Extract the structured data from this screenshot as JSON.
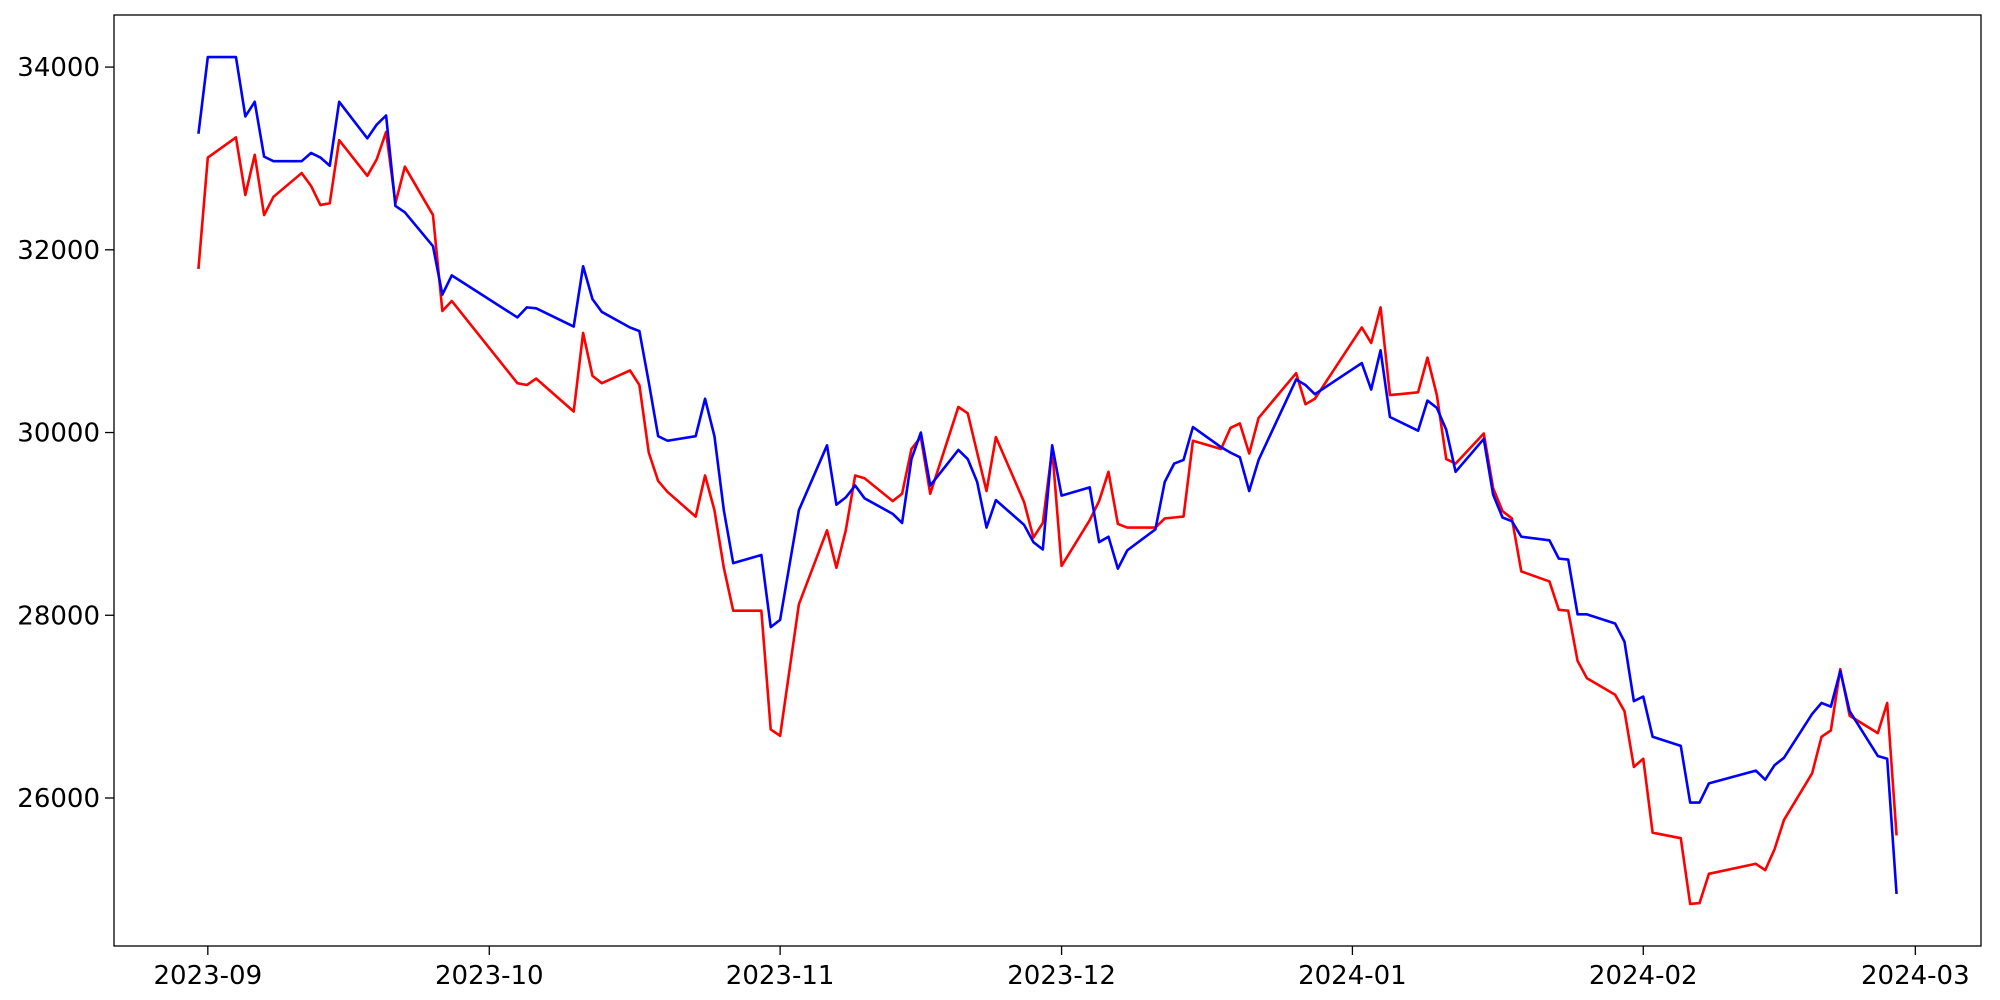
{
  "chart_data": {
    "type": "line",
    "x": [
      "2023-08-31",
      "2023-09-01",
      "2023-09-04",
      "2023-09-05",
      "2023-09-06",
      "2023-09-07",
      "2023-09-08",
      "2023-09-11",
      "2023-09-12",
      "2023-09-13",
      "2023-09-14",
      "2023-09-15",
      "2023-09-18",
      "2023-09-19",
      "2023-09-20",
      "2023-09-21",
      "2023-09-22",
      "2023-09-25",
      "2023-09-26",
      "2023-09-27",
      "2023-10-04",
      "2023-10-05",
      "2023-10-06",
      "2023-10-10",
      "2023-10-11",
      "2023-10-12",
      "2023-10-13",
      "2023-10-16",
      "2023-10-17",
      "2023-10-18",
      "2023-10-19",
      "2023-10-20",
      "2023-10-23",
      "2023-10-24",
      "2023-10-25",
      "2023-10-26",
      "2023-10-27",
      "2023-10-30",
      "2023-10-31",
      "2023-11-01",
      "2023-11-03",
      "2023-11-06",
      "2023-11-07",
      "2023-11-08",
      "2023-11-09",
      "2023-11-10",
      "2023-11-13",
      "2023-11-14",
      "2023-11-15",
      "2023-11-16",
      "2023-11-17",
      "2023-11-20",
      "2023-11-21",
      "2023-11-22",
      "2023-11-23",
      "2023-11-24",
      "2023-11-27",
      "2023-11-28",
      "2023-11-29",
      "2023-11-30",
      "2023-12-01",
      "2023-12-04",
      "2023-12-05",
      "2023-12-06",
      "2023-12-07",
      "2023-12-08",
      "2023-12-11",
      "2023-12-12",
      "2023-12-13",
      "2023-12-14",
      "2023-12-15",
      "2023-12-18",
      "2023-12-19",
      "2023-12-20",
      "2023-12-21",
      "2023-12-22",
      "2023-12-26",
      "2023-12-27",
      "2023-12-28",
      "2024-01-02",
      "2024-01-03",
      "2024-01-04",
      "2024-01-05",
      "2024-01-08",
      "2024-01-09",
      "2024-01-10",
      "2024-01-11",
      "2024-01-12",
      "2024-01-15",
      "2024-01-16",
      "2024-01-17",
      "2024-01-18",
      "2024-01-19",
      "2024-01-22",
      "2024-01-23",
      "2024-01-24",
      "2024-01-25",
      "2024-01-26",
      "2024-01-29",
      "2024-01-30",
      "2024-01-31",
      "2024-02-01",
      "2024-02-02",
      "2024-02-05",
      "2024-02-06",
      "2024-02-07",
      "2024-02-08",
      "2024-02-13",
      "2024-02-14",
      "2024-02-15",
      "2024-02-16",
      "2024-02-19",
      "2024-02-20",
      "2024-02-21",
      "2024-02-22",
      "2024-02-23",
      "2024-02-26",
      "2024-02-27",
      "2024-02-28"
    ],
    "series": [
      {
        "color": "#0000ff",
        "values": [
          33270,
          34110,
          34110,
          33460,
          33620,
          33020,
          32970,
          32970,
          33060,
          33010,
          32920,
          33620,
          33220,
          33370,
          33470,
          32480,
          32410,
          32040,
          31510,
          31720,
          31260,
          31370,
          31360,
          31160,
          31820,
          31460,
          31320,
          31150,
          31110,
          30550,
          29960,
          29910,
          29960,
          30370,
          29960,
          29150,
          28570,
          28660,
          27870,
          27950,
          29150,
          29860,
          29210,
          29290,
          29420,
          29280,
          29110,
          29010,
          29710,
          30000,
          29420,
          29810,
          29710,
          29460,
          28960,
          29260,
          28990,
          28800,
          28720,
          29860,
          29310,
          29400,
          28800,
          28860,
          28510,
          28710,
          28940,
          29460,
          29660,
          29700,
          30060,
          29840,
          29780,
          29730,
          29360,
          29700,
          30580,
          30520,
          30420,
          30760,
          30470,
          30900,
          30170,
          30020,
          30350,
          30270,
          30030,
          29570,
          29930,
          29320,
          29070,
          29030,
          28860,
          28820,
          28620,
          28610,
          28010,
          28010,
          27910,
          27710,
          27060,
          27110,
          26670,
          26570,
          25950,
          25950,
          26160,
          26300,
          26200,
          26360,
          26440,
          26920,
          27040,
          27000,
          27390,
          26950,
          26460,
          26430,
          24950
        ]
      },
      {
        "color": "#ff0000",
        "values": [
          31790,
          33010,
          33230,
          32600,
          33040,
          32380,
          32580,
          32840,
          32700,
          32490,
          32510,
          33200,
          32810,
          32990,
          33290,
          32510,
          32910,
          32380,
          31330,
          31440,
          30540,
          30520,
          30590,
          30230,
          31090,
          30620,
          30540,
          30680,
          30520,
          29780,
          29470,
          29350,
          29080,
          29530,
          29150,
          28520,
          28050,
          28050,
          26750,
          26680,
          28120,
          28930,
          28520,
          28930,
          29530,
          29500,
          29250,
          29330,
          29820,
          29950,
          29330,
          30280,
          30210,
          29780,
          29360,
          29950,
          29240,
          28850,
          29010,
          29820,
          28540,
          29040,
          29250,
          29570,
          29000,
          28960,
          28960,
          29060,
          29070,
          29080,
          29910,
          29820,
          30050,
          30100,
          29770,
          30160,
          30650,
          30310,
          30370,
          31150,
          30980,
          31370,
          30410,
          30440,
          30820,
          30410,
          29710,
          29660,
          29990,
          29390,
          29140,
          29060,
          28480,
          28370,
          28060,
          28050,
          27500,
          27310,
          27130,
          26950,
          26340,
          26430,
          25620,
          25560,
          24840,
          24850,
          25170,
          25280,
          25210,
          25440,
          25760,
          26270,
          26670,
          26740,
          27410,
          26900,
          26710,
          27040,
          25590
        ]
      }
    ],
    "xlim": [
      "2023-08-22",
      "2024-03-08"
    ],
    "xticks": [
      {
        "value": "2023-09-01",
        "label": "2023-09"
      },
      {
        "value": "2023-10-01",
        "label": "2023-10"
      },
      {
        "value": "2023-11-01",
        "label": "2023-11"
      },
      {
        "value": "2023-12-01",
        "label": "2023-12"
      },
      {
        "value": "2024-01-01",
        "label": "2024-01"
      },
      {
        "value": "2024-02-01",
        "label": "2024-02"
      },
      {
        "value": "2024-03-01",
        "label": "2024-03"
      }
    ],
    "ylim": [
      24380,
      34570
    ],
    "yticks": [
      26000,
      28000,
      30000,
      32000,
      34000
    ],
    "grid": false
  }
}
